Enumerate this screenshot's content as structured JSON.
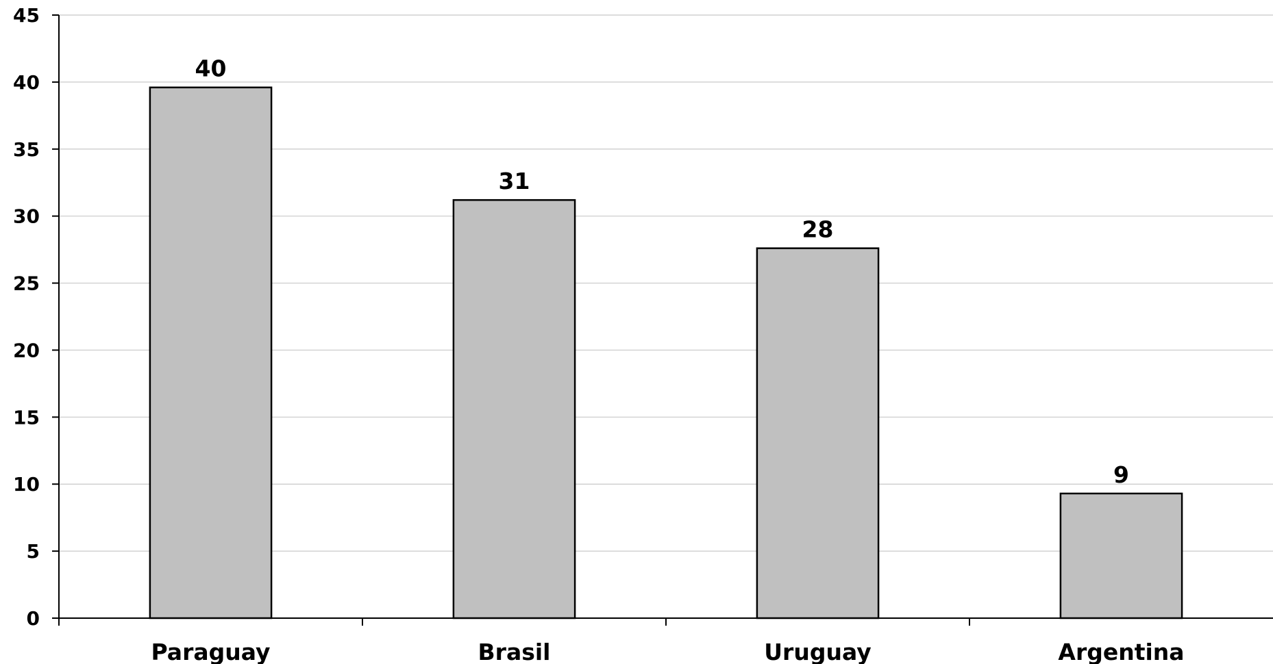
{
  "chart_data": {
    "type": "bar",
    "categories": [
      "Paraguay",
      "Brasil",
      "Uruguay",
      "Argentina"
    ],
    "values": [
      39.6,
      31.2,
      27.6,
      9.3
    ],
    "data_labels": [
      "40",
      "31",
      "28",
      "9"
    ],
    "ylim": [
      0,
      45
    ],
    "yticks": [
      0,
      5,
      10,
      15,
      20,
      25,
      30,
      35,
      40,
      45
    ],
    "ytick_labels": [
      "0",
      "5",
      "10",
      "15",
      "20",
      "25",
      "30",
      "35",
      "40",
      "45"
    ],
    "grid": true,
    "legend": "none",
    "colors": {
      "bar_fill": "#c0c0c0",
      "bar_stroke": "#000000",
      "grid": "#c8c8c8",
      "axis": "#000000"
    }
  }
}
